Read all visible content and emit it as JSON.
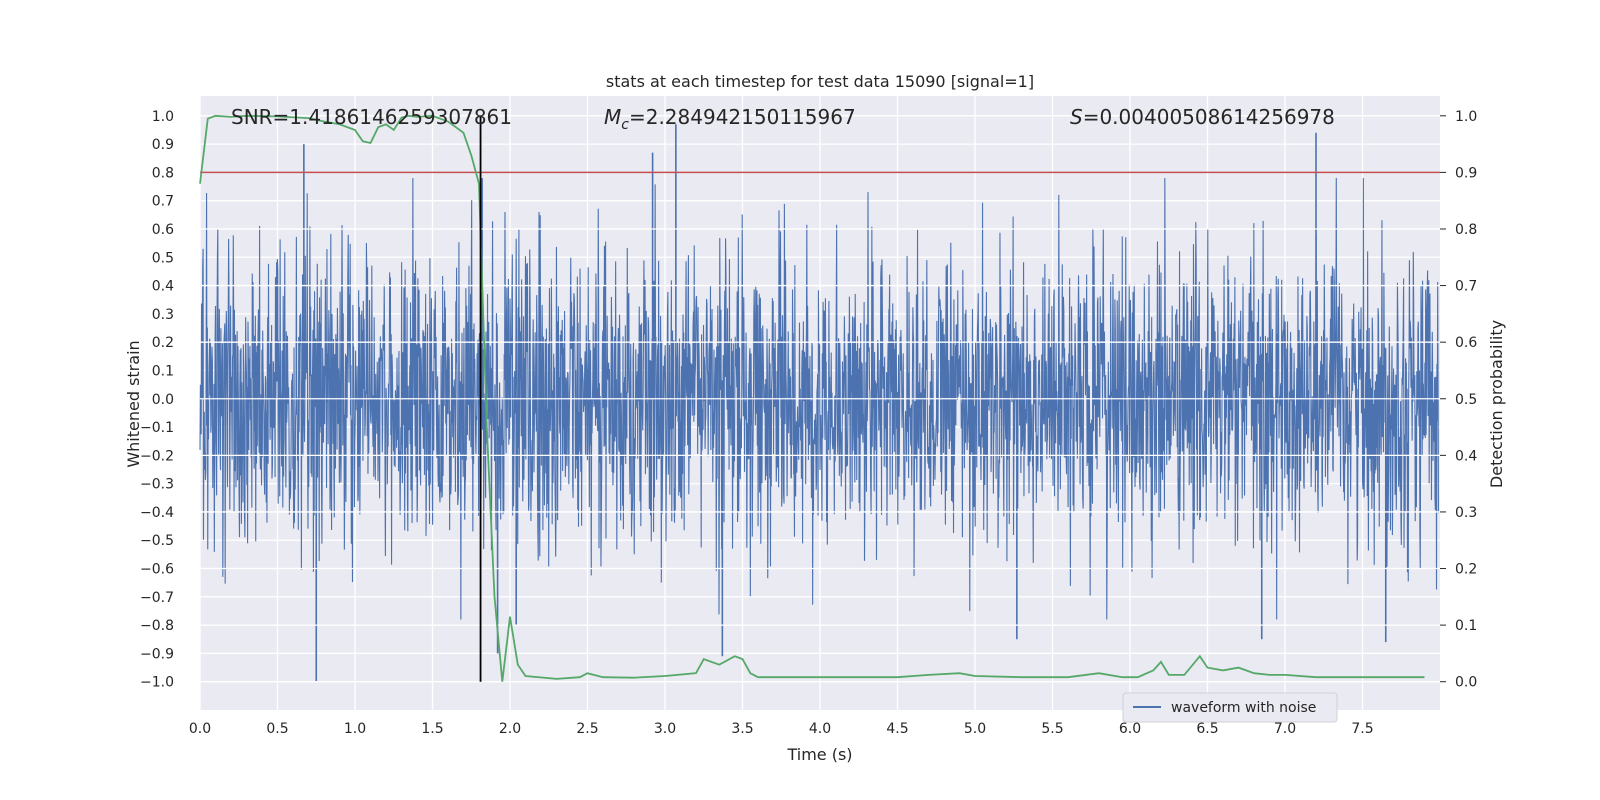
{
  "chart_data": {
    "type": "line",
    "title": "stats at each timestep for test data 15090 [signal=1]",
    "xlabel": "Time (s)",
    "ylabel_left": "Whitened strain",
    "ylabel_right": "Detection probability",
    "xlim": [
      0.0,
      8.0
    ],
    "ylim_left": [
      -1.1,
      1.07
    ],
    "ylim_right": [
      -0.05,
      1.035
    ],
    "grid": true,
    "legend_placement": "lower-right",
    "x_ticks": [
      "0.0",
      "0.5",
      "1.0",
      "1.5",
      "2.0",
      "2.5",
      "3.0",
      "3.5",
      "4.0",
      "4.5",
      "5.0",
      "5.5",
      "6.0",
      "6.5",
      "7.0",
      "7.5"
    ],
    "y_ticks_left": [
      "1.0",
      "0.9",
      "0.8",
      "0.7",
      "0.6",
      "0.5",
      "0.4",
      "0.3",
      "0.2",
      "0.1",
      "0.0",
      "-0.1",
      "-0.2",
      "-0.3",
      "-0.4",
      "-0.5",
      "-0.6",
      "-0.7",
      "-0.8",
      "-0.9",
      "-1.0"
    ],
    "y_ticks_right": [
      "1.0",
      "0.9",
      "0.8",
      "0.7",
      "0.6",
      "0.5",
      "0.4",
      "0.3",
      "0.2",
      "0.1",
      "0.0"
    ],
    "annotations": {
      "snr": "SNR=1.4186146259307861",
      "mc_symbol": "M",
      "mc_sub": "c",
      "mc_value": "=2.284942150115967",
      "s_symbol": "S",
      "s_value": "=0.00400508614256978"
    },
    "threshold": {
      "value": 0.9,
      "axis": "right",
      "color": "#c44e52"
    },
    "marker_time": 1.81,
    "series": [
      {
        "name": "waveform with noise",
        "axis": "left",
        "color": "#4c72b0",
        "style": "dense-noise",
        "t_range": [
          0.0,
          7.99
        ],
        "envelope_typical": 0.6,
        "spikes": [
          {
            "t": 0.67,
            "v": 0.9
          },
          {
            "t": 0.75,
            "v": -1.0
          },
          {
            "t": 2.92,
            "v": 0.87
          },
          {
            "t": 3.07,
            "v": 0.97
          },
          {
            "t": 3.37,
            "v": -0.91
          },
          {
            "t": 1.82,
            "v": 0.78
          },
          {
            "t": 7.2,
            "v": 0.94
          },
          {
            "t": 7.65,
            "v": -0.86
          },
          {
            "t": 6.85,
            "v": -0.85
          },
          {
            "t": 5.27,
            "v": -0.85
          },
          {
            "t": 1.92,
            "v": -0.9
          },
          {
            "t": 2.04,
            "v": -0.8
          }
        ]
      },
      {
        "name": "",
        "axis": "right",
        "color": "#55a868",
        "x": [
          0.0,
          0.05,
          0.1,
          0.2,
          0.3,
          0.5,
          0.7,
          0.8,
          0.9,
          1.0,
          1.05,
          1.1,
          1.15,
          1.2,
          1.25,
          1.3,
          1.35,
          1.4,
          1.5,
          1.6,
          1.65,
          1.7,
          1.75,
          1.8,
          1.85,
          1.9,
          1.95,
          2.0,
          2.05,
          2.1,
          2.3,
          2.45,
          2.5,
          2.6,
          2.8,
          3.0,
          3.2,
          3.25,
          3.35,
          3.45,
          3.5,
          3.55,
          3.6,
          3.7,
          4.0,
          4.5,
          4.7,
          4.9,
          5.0,
          5.3,
          5.6,
          5.8,
          5.95,
          6.05,
          6.15,
          6.2,
          6.25,
          6.35,
          6.45,
          6.5,
          6.6,
          6.7,
          6.8,
          6.9,
          7.0,
          7.2,
          7.5,
          7.7,
          7.9
        ],
        "y": [
          0.88,
          0.995,
          1.0,
          0.998,
          1.0,
          0.999,
          0.996,
          0.99,
          0.985,
          0.975,
          0.955,
          0.952,
          0.98,
          0.985,
          0.975,
          0.997,
          1.0,
          0.998,
          1.0,
          0.99,
          0.98,
          0.97,
          0.93,
          0.88,
          0.45,
          0.15,
          0.0,
          0.115,
          0.03,
          0.01,
          0.005,
          0.008,
          0.015,
          0.008,
          0.007,
          0.01,
          0.015,
          0.04,
          0.03,
          0.045,
          0.04,
          0.015,
          0.008,
          0.008,
          0.008,
          0.008,
          0.012,
          0.015,
          0.01,
          0.008,
          0.008,
          0.015,
          0.008,
          0.008,
          0.02,
          0.035,
          0.012,
          0.012,
          0.045,
          0.025,
          0.02,
          0.025,
          0.015,
          0.012,
          0.012,
          0.008,
          0.008,
          0.008,
          0.008
        ]
      }
    ]
  }
}
